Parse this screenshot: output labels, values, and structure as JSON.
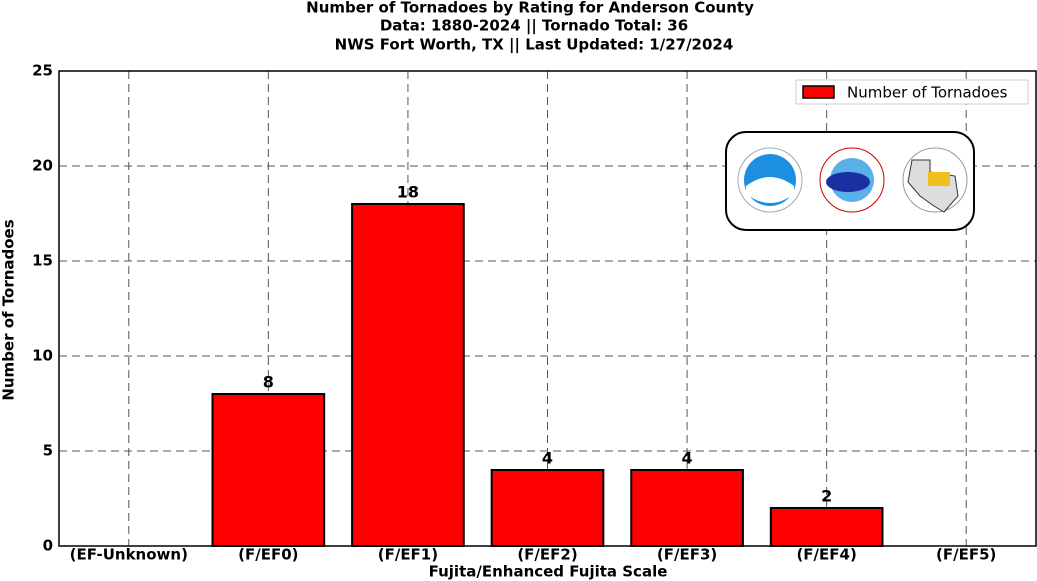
{
  "chart_data": {
    "type": "bar",
    "title": "Number of Tornadoes by Rating for Anderson County",
    "subtitle": "Data: 1880-2024 || Tornado Total: 36",
    "subtitle2": "NWS Fort Worth, TX || Last Updated: 1/27/2024",
    "x_label": "Fujita/Enhanced Fujita Scale",
    "y_label": "Number of Tornadoes",
    "categories": [
      "(EF-Unknown)",
      "(F/EF0)",
      "(F/EF1)",
      "(F/EF2)",
      "(F/EF3)",
      "(F/EF4)",
      "(F/EF5)"
    ],
    "series": [
      {
        "name": "Number of Tornadoes",
        "color": "#ff0000",
        "values": [
          0,
          8,
          18,
          4,
          4,
          2,
          0
        ]
      }
    ],
    "ylim": [
      0,
      25
    ],
    "yticks": [
      0,
      5,
      10,
      15,
      20,
      25
    ],
    "grid": true,
    "legend": "upper right"
  }
}
